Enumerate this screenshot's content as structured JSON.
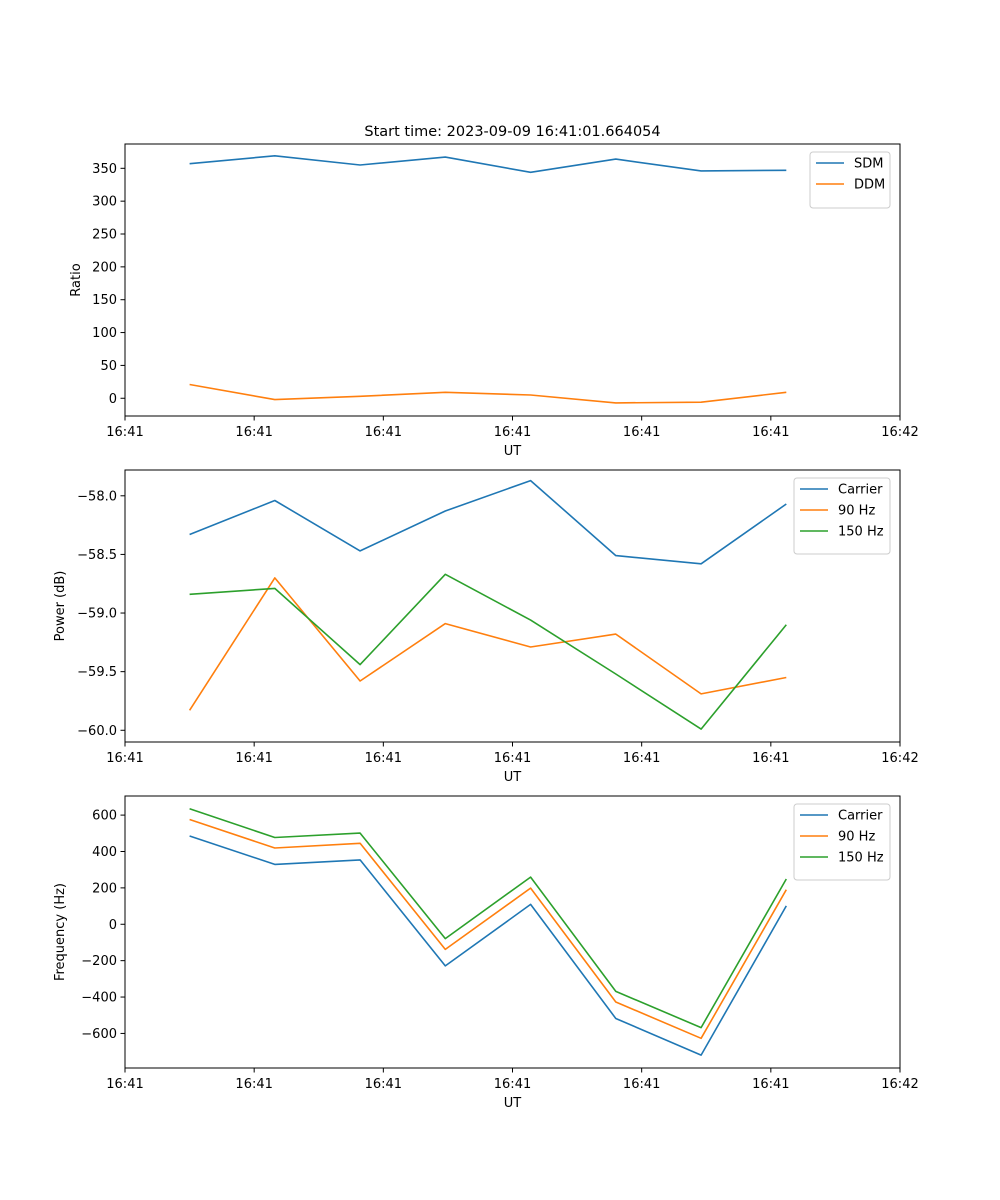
{
  "figure_title": "Start time: 2023-09-09 16:41:01.664054",
  "colors": {
    "blue": "#1f77b4",
    "orange": "#ff7f0e",
    "green": "#2ca02c"
  },
  "chart_data": [
    {
      "type": "line",
      "title": "Start time: 2023-09-09 16:41:01.664054",
      "xlabel": "UT",
      "ylabel": "Ratio",
      "xlim": [
        -0.5,
        5.5
      ],
      "ylim": [
        -27,
        387
      ],
      "xticks": [
        0,
        1,
        2,
        3,
        4,
        5
      ],
      "xtick_labels": [
        "16:41",
        "16:41",
        "16:41",
        "16:41",
        "16:41",
        "16:41",
        "16:42"
      ],
      "xtick_positions_all": [
        -0.5,
        0.5,
        1.5,
        2.5,
        3.5,
        4.5,
        5.5
      ],
      "yticks": [
        0,
        50,
        100,
        150,
        200,
        250,
        300,
        350
      ],
      "ytick_labels": [
        "0",
        "50",
        "100",
        "150",
        "200",
        "250",
        "300",
        "350"
      ],
      "legend_position": "top-right",
      "x": [
        0.0,
        0.66,
        1.32,
        1.98,
        2.64,
        3.3,
        3.96,
        4.62
      ],
      "series": [
        {
          "name": "SDM",
          "color": "#1f77b4",
          "values": [
            357,
            369,
            355,
            367,
            344,
            364,
            346,
            347
          ]
        },
        {
          "name": "DDM",
          "color": "#ff7f0e",
          "values": [
            21,
            -2,
            3,
            9,
            5,
            -7,
            -6,
            9
          ]
        }
      ]
    },
    {
      "type": "line",
      "xlabel": "UT",
      "ylabel": "Power (dB)",
      "xlim": [
        -0.5,
        5.5
      ],
      "ylim": [
        -60.1,
        -57.78
      ],
      "xtick_labels": [
        "16:41",
        "16:41",
        "16:41",
        "16:41",
        "16:41",
        "16:41",
        "16:42"
      ],
      "xtick_positions_all": [
        -0.5,
        0.5,
        1.5,
        2.5,
        3.5,
        4.5,
        5.5
      ],
      "yticks": [
        -60.0,
        -59.5,
        -59.0,
        -58.5,
        -58.0
      ],
      "ytick_labels": [
        "−60.0",
        "−59.5",
        "−59.0",
        "−58.5",
        "−58.0"
      ],
      "legend_position": "top-right",
      "x": [
        0.0,
        0.66,
        1.32,
        1.98,
        2.64,
        3.3,
        3.96,
        4.62
      ],
      "series": [
        {
          "name": "Carrier",
          "color": "#1f77b4",
          "values": [
            -58.33,
            -58.04,
            -58.47,
            -58.13,
            -57.87,
            -58.51,
            -58.58,
            -58.07
          ]
        },
        {
          "name": "90 Hz",
          "color": "#ff7f0e",
          "values": [
            -59.83,
            -58.7,
            -59.58,
            -59.09,
            -59.29,
            -59.18,
            -59.69,
            -59.55
          ]
        },
        {
          "name": "150 Hz",
          "color": "#2ca02c",
          "values": [
            -58.84,
            -58.79,
            -59.44,
            -58.67,
            -59.06,
            -59.52,
            -59.99,
            -59.1
          ]
        }
      ]
    },
    {
      "type": "line",
      "xlabel": "UT",
      "ylabel": "Frequency (Hz)",
      "xlim": [
        -0.5,
        5.5
      ],
      "ylim": [
        -790,
        705
      ],
      "xtick_labels": [
        "16:41",
        "16:41",
        "16:41",
        "16:41",
        "16:41",
        "16:41",
        "16:42"
      ],
      "xtick_positions_all": [
        -0.5,
        0.5,
        1.5,
        2.5,
        3.5,
        4.5,
        5.5
      ],
      "yticks": [
        -600,
        -400,
        -200,
        0,
        200,
        400,
        600
      ],
      "ytick_labels": [
        "−600",
        "−400",
        "−200",
        "0",
        "200",
        "400",
        "600"
      ],
      "legend_position": "top-right",
      "x": [
        0.0,
        0.66,
        1.32,
        1.98,
        2.64,
        3.3,
        3.96,
        4.62
      ],
      "series": [
        {
          "name": "Carrier",
          "color": "#1f77b4",
          "values": [
            485,
            329,
            354,
            -229,
            109,
            -518,
            -719,
            101
          ]
        },
        {
          "name": "90 Hz",
          "color": "#ff7f0e",
          "values": [
            576,
            419,
            445,
            -138,
            199,
            -427,
            -627,
            190
          ]
        },
        {
          "name": "150 Hz",
          "color": "#2ca02c",
          "values": [
            635,
            477,
            501,
            -79,
            259,
            -369,
            -568,
            249
          ]
        }
      ]
    }
  ]
}
